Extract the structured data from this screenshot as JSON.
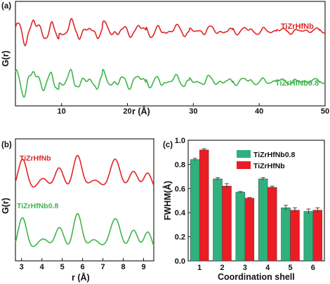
{
  "colors": {
    "red": "#e02424",
    "green": "#3fb549",
    "barGreen": "#2fb07c",
    "barRed": "#ec1c24"
  },
  "chart_data": [
    {
      "panel": "(a)",
      "type": "line",
      "xlabel": "r (Å)",
      "ylabel": "G(r)",
      "xlim": [
        3,
        50
      ],
      "xticks": [
        10,
        20,
        30,
        40,
        50
      ],
      "series": [
        {
          "name": "TiZrHfNb",
          "color": "#e02424"
        },
        {
          "name": "TiZrHfNb0.8",
          "color": "#3fb549"
        }
      ]
    },
    {
      "panel": "(b)",
      "type": "line",
      "xlabel": "r (Å)",
      "ylabel": "G(r)",
      "xlim": [
        2.7,
        9.5
      ],
      "xticks": [
        3,
        4,
        5,
        6,
        7,
        8,
        9
      ],
      "series": [
        {
          "name": "TiZrHfNb",
          "color": "#e02424"
        },
        {
          "name": "TiZrHfNb0.8",
          "color": "#3fb549"
        }
      ]
    },
    {
      "panel": "(c)",
      "type": "bar",
      "xlabel": "Coordination shell",
      "ylabel": "FWHM(Å)",
      "ylim": [
        0.0,
        1.0
      ],
      "yticks": [
        0.0,
        0.2,
        0.4,
        0.6,
        0.8,
        1.0
      ],
      "categories": [
        "1",
        "2",
        "3",
        "4",
        "5",
        "6"
      ],
      "legend_position": "top-right",
      "series": [
        {
          "name": "TiZrHfNb0.8",
          "color": "#2fb07c",
          "values": [
            0.84,
            0.68,
            0.57,
            0.68,
            0.44,
            0.41
          ],
          "errors": [
            0.01,
            0.01,
            0.005,
            0.01,
            0.02,
            0.02
          ]
        },
        {
          "name": "TiZrHfNb",
          "color": "#ec1c24",
          "values": [
            0.92,
            0.62,
            0.52,
            0.61,
            0.42,
            0.42
          ],
          "errors": [
            0.01,
            0.02,
            0.005,
            0.01,
            0.02,
            0.02
          ]
        }
      ]
    }
  ]
}
